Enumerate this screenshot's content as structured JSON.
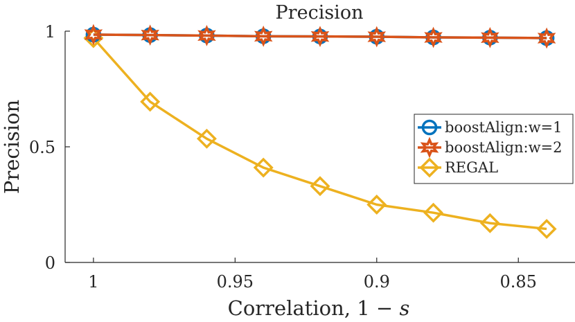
{
  "chart_data": {
    "type": "line",
    "title": "Precision",
    "xlabel": "Correlation, 1 − s",
    "xlabel_prefix": "Correlation, 1 − ",
    "xlabel_var": "s",
    "ylabel": "Precision",
    "x_reversed": true,
    "xlim": [
      1.01,
      0.83
    ],
    "ylim": [
      0,
      1
    ],
    "xticks": [
      1,
      0.95,
      0.9,
      0.85
    ],
    "xtick_labels": [
      "1",
      "0.95",
      "0.9",
      "0.85"
    ],
    "yticks": [
      0,
      0.5,
      1
    ],
    "ytick_labels": [
      "0",
      "0.5",
      "1"
    ],
    "x": [
      1,
      0.98,
      0.96,
      0.94,
      0.92,
      0.9,
      0.88,
      0.86,
      0.84
    ],
    "legend_position": "right",
    "series": [
      {
        "name": "boostAlign:w=1",
        "color": "#0072BD",
        "marker": "circle",
        "values": [
          0.985,
          0.983,
          0.981,
          0.978,
          0.977,
          0.976,
          0.973,
          0.972,
          0.97
        ]
      },
      {
        "name": "boostAlign:w=2",
        "color": "#D95319",
        "marker": "hexagram",
        "values": [
          0.985,
          0.983,
          0.981,
          0.978,
          0.977,
          0.976,
          0.973,
          0.972,
          0.97
        ]
      },
      {
        "name": "REGAL",
        "color": "#EDB120",
        "marker": "diamond",
        "values": [
          0.97,
          0.695,
          0.535,
          0.41,
          0.33,
          0.25,
          0.215,
          0.17,
          0.145
        ]
      }
    ]
  }
}
